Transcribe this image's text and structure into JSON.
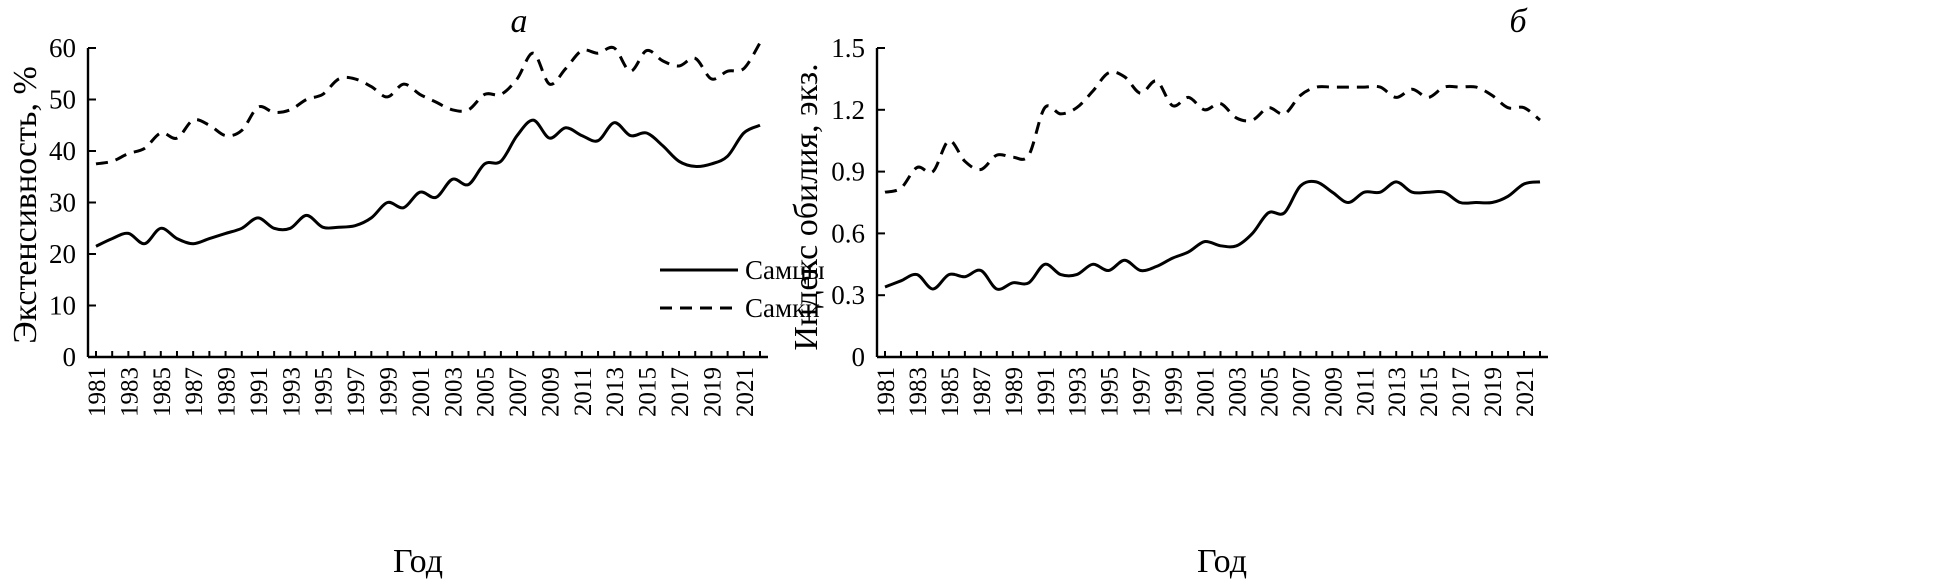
{
  "chart_data": [
    {
      "type": "line",
      "title": "а",
      "xlabel": "Год",
      "ylabel": "Экстенсивность, %",
      "ylim": [
        0,
        60
      ],
      "yticks": [
        "0",
        "10",
        "20",
        "30",
        "40",
        "50",
        "60"
      ],
      "xtick_labels": [
        "1981",
        "1983",
        "1985",
        "1987",
        "1989",
        "1991",
        "1993",
        "1995",
        "1997",
        "1999",
        "2001",
        "2003",
        "2005",
        "2007",
        "2009",
        "2011",
        "2013",
        "2015",
        "2017",
        "2019",
        "2021"
      ],
      "x": [
        1981,
        1982,
        1983,
        1984,
        1985,
        1986,
        1987,
        1988,
        1989,
        1990,
        1991,
        1992,
        1993,
        1994,
        1995,
        1996,
        1997,
        1998,
        1999,
        2000,
        2001,
        2002,
        2003,
        2004,
        2005,
        2006,
        2007,
        2008,
        2009,
        2010,
        2011,
        2012,
        2013,
        2014,
        2015,
        2016,
        2017,
        2018,
        2019,
        2020,
        2021,
        2022
      ],
      "legend": {
        "position": "center-right",
        "entries": [
          "Самцы",
          "Самки"
        ]
      },
      "series": [
        {
          "name": "Самцы",
          "style": "solid",
          "values": [
            21.5,
            23,
            24,
            22,
            25,
            23,
            22,
            23,
            24,
            25,
            27,
            25,
            25,
            27.5,
            25.2,
            25.2,
            25.5,
            27,
            30,
            29,
            32,
            31,
            34.5,
            33.5,
            37.5,
            38,
            43,
            46,
            42.5,
            44.5,
            43,
            42,
            45.5,
            43,
            43.5,
            41,
            38,
            37,
            37.5,
            39,
            43.5,
            45
          ]
        },
        {
          "name": "Самки",
          "style": "dashed",
          "values": [
            37.5,
            38,
            39.5,
            40.5,
            43.5,
            42.5,
            46,
            45,
            43,
            44,
            48.5,
            47.5,
            48,
            50,
            51,
            54,
            54,
            52.5,
            50.5,
            53,
            51,
            49.5,
            48,
            48,
            51,
            51,
            54,
            59,
            53,
            56,
            59.5,
            59,
            60,
            55.5,
            59.5,
            57.5,
            56.5,
            58,
            54,
            55.5,
            56,
            61
          ]
        }
      ]
    },
    {
      "type": "line",
      "title": "б",
      "xlabel": "Год",
      "ylabel": "Индекс обилия, экз.",
      "ylim": [
        0,
        1.5
      ],
      "yticks": [
        "0",
        "0.3",
        "0.6",
        "0.9",
        "1.2",
        "1.5"
      ],
      "xtick_labels": [
        "1981",
        "1983",
        "1985",
        "1987",
        "1989",
        "1991",
        "1993",
        "1995",
        "1997",
        "1999",
        "2001",
        "2003",
        "2005",
        "2007",
        "2009",
        "2011",
        "2013",
        "2015",
        "2017",
        "2019",
        "2021"
      ],
      "x": [
        1981,
        1982,
        1983,
        1984,
        1985,
        1986,
        1987,
        1988,
        1989,
        1990,
        1991,
        1992,
        1993,
        1994,
        1995,
        1996,
        1997,
        1998,
        1999,
        2000,
        2001,
        2002,
        2003,
        2004,
        2005,
        2006,
        2007,
        2008,
        2009,
        2010,
        2011,
        2012,
        2013,
        2014,
        2015,
        2016,
        2017,
        2018,
        2019,
        2020,
        2021,
        2022
      ],
      "series": [
        {
          "style": "solid",
          "values": [
            0.34,
            0.37,
            0.4,
            0.33,
            0.4,
            0.39,
            0.42,
            0.33,
            0.36,
            0.36,
            0.45,
            0.4,
            0.4,
            0.45,
            0.42,
            0.47,
            0.42,
            0.44,
            0.48,
            0.51,
            0.56,
            0.54,
            0.54,
            0.6,
            0.7,
            0.7,
            0.83,
            0.85,
            0.8,
            0.75,
            0.8,
            0.8,
            0.85,
            0.8,
            0.8,
            0.8,
            0.75,
            0.75,
            0.75,
            0.78,
            0.84,
            0.85
          ]
        },
        {
          "style": "dashed",
          "values": [
            0.8,
            0.82,
            0.92,
            0.9,
            1.05,
            0.95,
            0.91,
            0.98,
            0.97,
            0.98,
            1.21,
            1.18,
            1.21,
            1.29,
            1.38,
            1.36,
            1.28,
            1.34,
            1.22,
            1.26,
            1.2,
            1.23,
            1.16,
            1.15,
            1.21,
            1.18,
            1.27,
            1.31,
            1.31,
            1.31,
            1.31,
            1.31,
            1.26,
            1.3,
            1.26,
            1.31,
            1.31,
            1.31,
            1.27,
            1.21,
            1.21,
            1.15
          ]
        }
      ]
    }
  ]
}
